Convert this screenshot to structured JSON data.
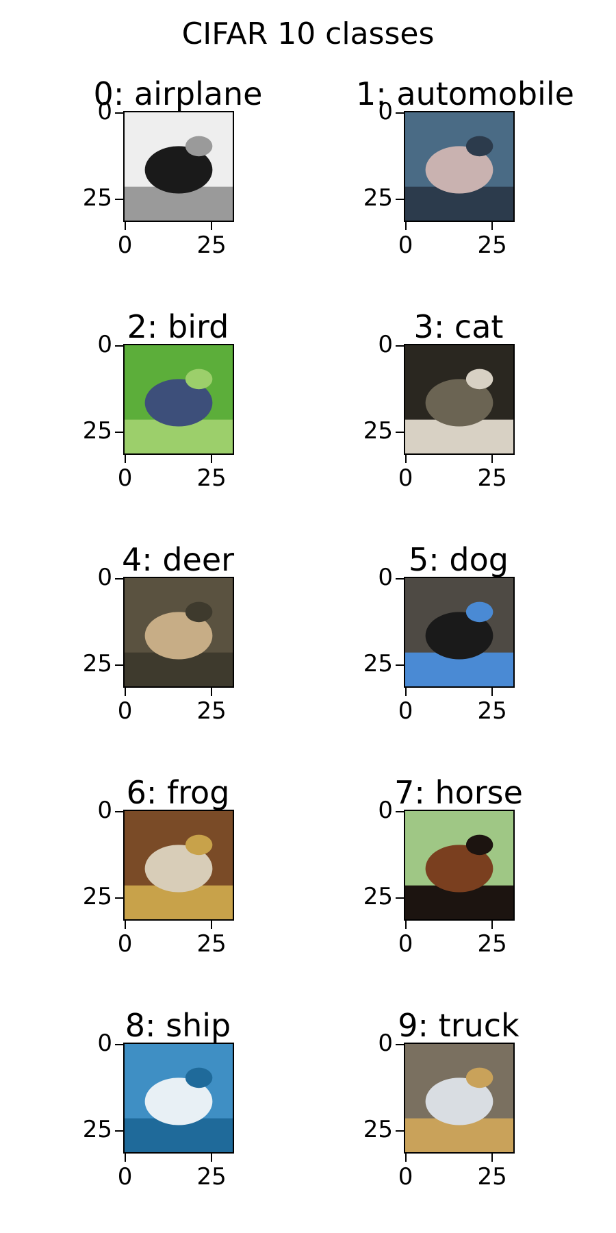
{
  "chart_data": {
    "type": "image_grid",
    "title": "CIFAR 10 classes",
    "layout": {
      "rows": 5,
      "cols": 2
    },
    "image_extent": [
      0,
      32
    ],
    "axis_ticks": [
      0,
      25
    ],
    "panels": [
      {
        "label": "0: airplane",
        "colors": {
          "bg": "#eeeeee",
          "subject": "#1a1a1a",
          "accent": "#9a9a9a"
        }
      },
      {
        "label": "1: automobile",
        "colors": {
          "bg": "#4a6b85",
          "subject": "#c9b2b0",
          "accent": "#2c3b4c"
        }
      },
      {
        "label": "2: bird",
        "colors": {
          "bg": "#5cae3a",
          "subject": "#3d4f7a",
          "accent": "#9ccf6b"
        }
      },
      {
        "label": "3: cat",
        "colors": {
          "bg": "#2a2720",
          "subject": "#6b6453",
          "accent": "#d8d1c4"
        }
      },
      {
        "label": "4: deer",
        "colors": {
          "bg": "#5a5240",
          "subject": "#c7ad86",
          "accent": "#3e3a2d"
        }
      },
      {
        "label": "5: dog",
        "colors": {
          "bg": "#4e4a44",
          "subject": "#1a1a1a",
          "accent": "#4a8ad4"
        }
      },
      {
        "label": "6: frog",
        "colors": {
          "bg": "#7a4b27",
          "subject": "#d8cdb8",
          "accent": "#c8a24a"
        }
      },
      {
        "label": "7: horse",
        "colors": {
          "bg": "#9fc785",
          "subject": "#7a3f1f",
          "accent": "#1c1410"
        }
      },
      {
        "label": "8: ship",
        "colors": {
          "bg": "#3f8fc4",
          "subject": "#e8f0f5",
          "accent": "#1f6a9a"
        }
      },
      {
        "label": "9: truck",
        "colors": {
          "bg": "#7a7060",
          "subject": "#d9dde2",
          "accent": "#c9a25a"
        }
      }
    ]
  }
}
